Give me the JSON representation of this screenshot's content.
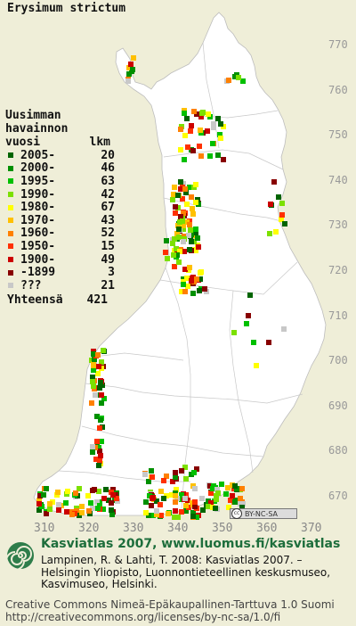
{
  "species": "Erysimum strictum",
  "legend": {
    "heading": [
      "Uusimman",
      "havainnon"
    ],
    "column_period": "vuosi",
    "column_count": "lkm",
    "rows": [
      {
        "label": "2005-",
        "count": "20",
        "color": "#006400"
      },
      {
        "label": "2000-",
        "count": "46",
        "color": "#009000"
      },
      {
        "label": "1995-",
        "count": "63",
        "color": "#00c000"
      },
      {
        "label": "1990-",
        "count": "42",
        "color": "#7ce000"
      },
      {
        "label": "1980-",
        "count": "67",
        "color": "#ffff00"
      },
      {
        "label": "1970-",
        "count": "43",
        "color": "#ffc000"
      },
      {
        "label": "1960-",
        "count": "52",
        "color": "#ff8000"
      },
      {
        "label": "1950-",
        "count": "15",
        "color": "#ff3000"
      },
      {
        "label": "1900-",
        "count": "49",
        "color": "#cc0000"
      },
      {
        "label": "-1899",
        "count": "3",
        "color": "#880000"
      },
      {
        "label": "???",
        "count": "21",
        "color": "#c8c8c8"
      }
    ],
    "total_label": "Yhteensä",
    "total_count": "421"
  },
  "grid": {
    "northing_labels": [
      "770",
      "760",
      "750",
      "740",
      "730",
      "720",
      "710",
      "700",
      "690",
      "680",
      "670"
    ],
    "easting_labels": [
      "310",
      "320",
      "330",
      "340",
      "350",
      "360",
      "370"
    ]
  },
  "license_badge": "BY-NC-SA",
  "footer": {
    "title": "Kasviatlas 2007, www.luomus.fi/kasviatlas",
    "citation": "Lampinen, R. & Lahti, T. 2008: Kasviatlas 2007. – Helsingin Yliopisto, Luonnontieteellinen keskusmuseo, Kasvimuseo, Helsinki.",
    "license_line1": "Creative Commons Nimeä-Epäkaupallinen-Tarttuva 1.0 Suomi",
    "license_line2": "http://creativecommons.org/licenses/by-nc-sa/1.0/fi"
  },
  "colors": {
    "land": "#ffffff",
    "background": "#efeed8",
    "borders": "#c4c4c4",
    "title_green": "#1e6e3c"
  },
  "map_data": {
    "description_region": "Finland",
    "occurrence_squares_total": 421
  }
}
